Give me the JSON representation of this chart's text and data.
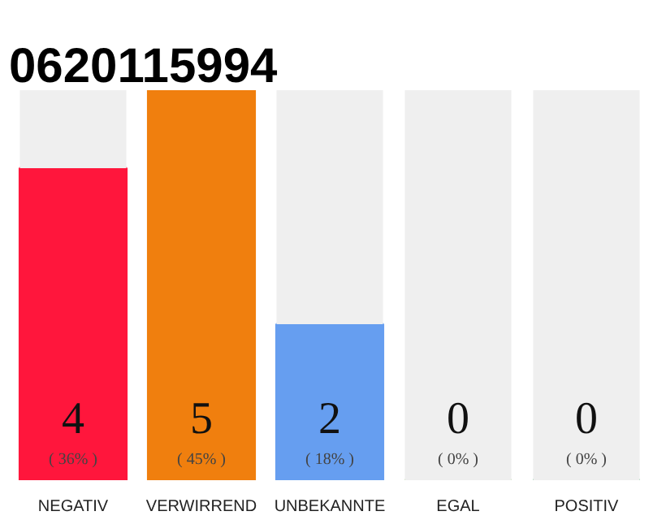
{
  "chart_data": {
    "type": "bar",
    "title": "0620115994",
    "stacked": true,
    "categories": [
      "NEGATIV",
      "VERWIRREND",
      "UNBEKANNTE",
      "EGAL",
      "POSITIV"
    ],
    "series": [
      {
        "colors": [
          "#ff163c",
          "#f07f0e",
          "#669ef0",
          "#8bc96a",
          "#1fa84a"
        ],
        "values": [
          4,
          5,
          2,
          0,
          0
        ],
        "value_labels": [
          "4",
          "5",
          "2",
          "0",
          "0"
        ]
      },
      {
        "color": "#efefef",
        "values": [
          1,
          0,
          3,
          5,
          5
        ]
      }
    ],
    "annotations": [
      "( 36% )",
      "( 45% )",
      "( 18% )",
      "( 0% )",
      "( 0% )"
    ]
  }
}
